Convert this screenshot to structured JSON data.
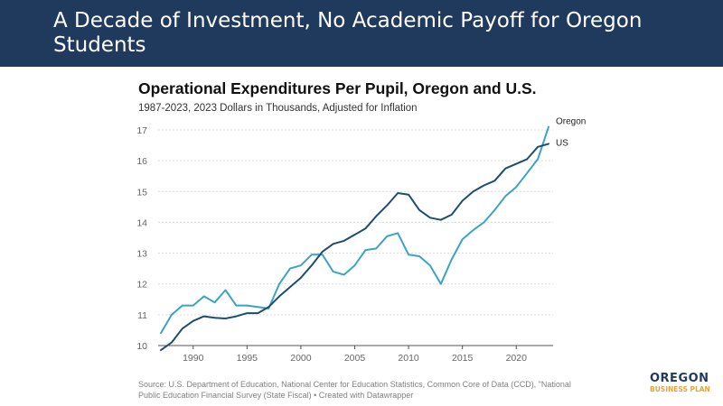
{
  "slide": {
    "title": "A Decade of Investment, No Academic Payoff for Oregon Students"
  },
  "chart_data": {
    "type": "line",
    "title": "Operational Expenditures Per Pupil, Oregon and U.S.",
    "subtitle": "1987-2023, 2023 Dollars in Thousands, Adjusted for Inflation",
    "xlabel": "",
    "ylabel": "",
    "xlim": [
      1987,
      2023
    ],
    "ylim": [
      10,
      17
    ],
    "x_ticks": [
      1990,
      1995,
      2000,
      2005,
      2010,
      2015,
      2020
    ],
    "y_ticks": [
      10,
      11,
      12,
      13,
      14,
      15,
      16,
      17
    ],
    "grid": true,
    "x": [
      1987,
      1988,
      1989,
      1990,
      1991,
      1992,
      1993,
      1994,
      1995,
      1996,
      1997,
      1998,
      1999,
      2000,
      2001,
      2002,
      2003,
      2004,
      2005,
      2006,
      2007,
      2008,
      2009,
      2010,
      2011,
      2012,
      2013,
      2014,
      2015,
      2016,
      2017,
      2018,
      2019,
      2020,
      2021,
      2022,
      2023
    ],
    "series": [
      {
        "name": "Oregon",
        "color": "#3ba3c7",
        "values": [
          10.4,
          11.0,
          11.3,
          11.3,
          11.6,
          11.4,
          11.8,
          11.3,
          11.3,
          11.25,
          11.2,
          12.0,
          12.5,
          12.6,
          12.95,
          12.95,
          12.4,
          12.3,
          12.6,
          13.1,
          13.15,
          13.55,
          13.65,
          12.95,
          12.9,
          12.6,
          12.0,
          12.8,
          13.45,
          13.75,
          14.0,
          14.4,
          14.85,
          15.15,
          15.6,
          16.05,
          17.1
        ]
      },
      {
        "name": "US",
        "color": "#1d4e6e",
        "values": [
          9.85,
          10.1,
          10.55,
          10.8,
          10.95,
          10.9,
          10.88,
          10.95,
          11.05,
          11.05,
          11.25,
          11.6,
          11.9,
          12.2,
          12.6,
          13.05,
          13.3,
          13.4,
          13.6,
          13.8,
          14.2,
          14.55,
          14.95,
          14.9,
          14.4,
          14.15,
          14.08,
          14.25,
          14.7,
          15.0,
          15.2,
          15.35,
          15.75,
          15.9,
          16.05,
          16.45,
          16.55
        ]
      }
    ],
    "legend": [
      "Oregon",
      "US"
    ]
  },
  "source": "Source: U.S. Department of Education, National Center for Education Statistics, Common Core of Data (CCD), \"National Public Education Financial Survey (State Fiscal) • Created with Datawrapper",
  "logo": {
    "name": "OREGON",
    "subtitle": "BUSINESS PLAN"
  },
  "colors": {
    "banner": "#1f3a5c",
    "oregon": "#3ba3c7",
    "us": "#1d4e6e",
    "logo_accent": "#e8a33d"
  }
}
